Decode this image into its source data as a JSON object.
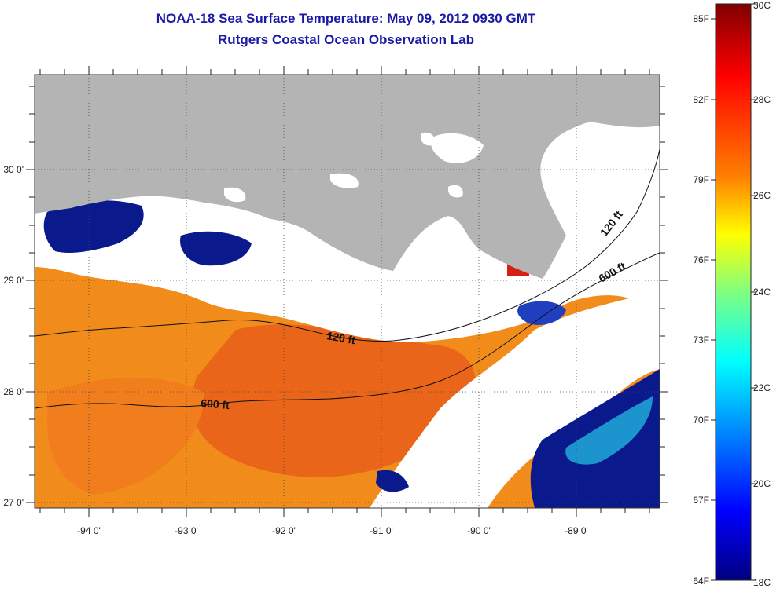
{
  "title_line1": "NOAA-18 Sea Surface Temperature:  May 09, 2012 0930 GMT",
  "title_line2": "Rutgers Coastal Ocean Observation Lab",
  "map": {
    "lon_ticks": [
      "-94 0'",
      "-93 0'",
      "-92 0'",
      "-91 0'",
      "-90 0'",
      "-89 0'"
    ],
    "lat_ticks": [
      "30 0'",
      "29 0'",
      "28 0'",
      "27 0'"
    ],
    "contours": [
      {
        "label": "120 ft",
        "segment": "west"
      },
      {
        "label": "120 ft",
        "segment": "east"
      },
      {
        "label": "600 ft",
        "segment": "west"
      },
      {
        "label": "600 ft",
        "segment": "east"
      }
    ],
    "colors": {
      "land": "#b4b4b4",
      "cloud": "#ffffff",
      "warm": "#f08a1e",
      "hot": "#e84a18",
      "cold": "#0a1a8c"
    }
  },
  "colorbar": {
    "f_labels": [
      "85F",
      "82F",
      "79F",
      "76F",
      "73F",
      "70F",
      "67F",
      "64F"
    ],
    "c_labels": [
      "30C",
      "28C",
      "26C",
      "24C",
      "22C",
      "20C",
      "18C"
    ],
    "colors": [
      "#7f0000",
      "#ff0000",
      "#ff8000",
      "#ffff00",
      "#80ff80",
      "#00ffff",
      "#0080ff",
      "#0000ff",
      "#00007f"
    ]
  }
}
